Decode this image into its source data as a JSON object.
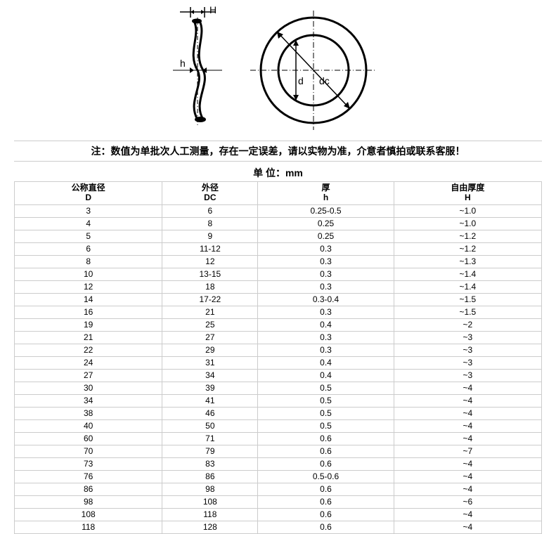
{
  "diagram": {
    "labels": {
      "H": "H",
      "h": "h",
      "d": "d",
      "dc": "dc"
    },
    "stroke": "#000000",
    "fill": "#ffffff"
  },
  "note": "注：数值为单批次人工测量，存在一定误差，请以实物为准，介意者慎拍或联系客服！",
  "unit_label": "单 位：mm",
  "columns": [
    {
      "cn": "公称直径",
      "sym": "D"
    },
    {
      "cn": "外径",
      "sym": "DC"
    },
    {
      "cn": "厚",
      "sym": "h"
    },
    {
      "cn": "自由厚度",
      "sym": "H"
    }
  ],
  "rows": [
    {
      "D": "3",
      "DC": "6",
      "h": "0.25-0.5",
      "H": "~1.0"
    },
    {
      "D": "4",
      "DC": "8",
      "h": "0.25",
      "H": "~1.0"
    },
    {
      "D": "5",
      "DC": "9",
      "h": "0.25",
      "H": "~1.2"
    },
    {
      "D": "6",
      "DC": "11-12",
      "h": "0.3",
      "H": "~1.2"
    },
    {
      "D": "8",
      "DC": "12",
      "h": "0.3",
      "H": "~1.3"
    },
    {
      "D": "10",
      "DC": "13-15",
      "h": "0.3",
      "H": "~1.4"
    },
    {
      "D": "12",
      "DC": "18",
      "h": "0.3",
      "H": "~1.4"
    },
    {
      "D": "14",
      "DC": "17-22",
      "h": "0.3-0.4",
      "H": "~1.5"
    },
    {
      "D": "16",
      "DC": "21",
      "h": "0.3",
      "H": "~1.5"
    },
    {
      "D": "19",
      "DC": "25",
      "h": "0.4",
      "H": "~2"
    },
    {
      "D": "21",
      "DC": "27",
      "h": "0.3",
      "H": "~3"
    },
    {
      "D": "22",
      "DC": "29",
      "h": "0.3",
      "H": "~3"
    },
    {
      "D": "24",
      "DC": "31",
      "h": "0.4",
      "H": "~3"
    },
    {
      "D": "27",
      "DC": "34",
      "h": "0.4",
      "H": "~3"
    },
    {
      "D": "30",
      "DC": "39",
      "h": "0.5",
      "H": "~4"
    },
    {
      "D": "34",
      "DC": "41",
      "h": "0.5",
      "H": "~4"
    },
    {
      "D": "38",
      "DC": "46",
      "h": "0.5",
      "H": "~4"
    },
    {
      "D": "40",
      "DC": "50",
      "h": "0.5",
      "H": "~4"
    },
    {
      "D": "60",
      "DC": "71",
      "h": "0.6",
      "H": "~4"
    },
    {
      "D": "70",
      "DC": "79",
      "h": "0.6",
      "H": "~7"
    },
    {
      "D": "73",
      "DC": "83",
      "h": "0.6",
      "H": "~4"
    },
    {
      "D": "76",
      "DC": "86",
      "h": "0.5-0.6",
      "H": "~4"
    },
    {
      "D": "86",
      "DC": "98",
      "h": "0.6",
      "H": "~4"
    },
    {
      "D": "98",
      "DC": "108",
      "h": "0.6",
      "H": "~6"
    },
    {
      "D": "108",
      "DC": "118",
      "h": "0.6",
      "H": "~4"
    },
    {
      "D": "118",
      "DC": "128",
      "h": "0.6",
      "H": "~4"
    }
  ],
  "styles": {
    "border_color": "#cccccc",
    "text_color": "#000000",
    "bg_color": "#ffffff",
    "header_fontsize": 12,
    "cell_fontsize": 12,
    "note_fontsize": 14
  }
}
